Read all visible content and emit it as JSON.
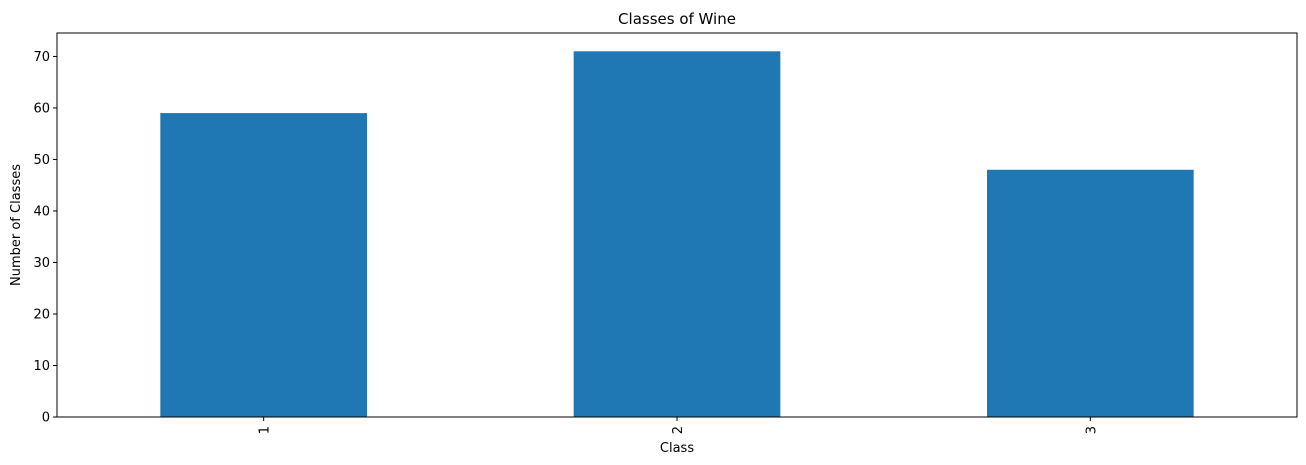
{
  "chart_data": {
    "type": "bar",
    "title": "Classes of Wine",
    "xlabel": "Class",
    "ylabel": "Number of Classes",
    "categories": [
      "1",
      "2",
      "3"
    ],
    "values": [
      59,
      71,
      48
    ],
    "ylim": [
      0,
      74.55
    ],
    "yticks": [
      0,
      10,
      20,
      30,
      40,
      50,
      60,
      70
    ],
    "xtick_rotation": 90,
    "grid": false,
    "legend": "none",
    "bar_color": "#1f77b4"
  }
}
